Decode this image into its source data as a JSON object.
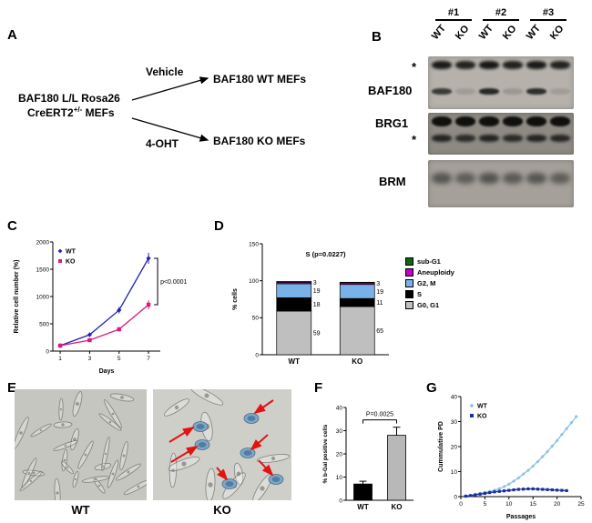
{
  "panels": {
    "a": {
      "label": "A",
      "source_line1": "BAF180 L/L Rosa26",
      "source_line2_pre": "CreERT2",
      "source_line2_sup": "+/-",
      "source_line2_post": " MEFs",
      "arm1_label": "Vehicle",
      "arm2_label": "4-OHT",
      "arm1_result": "BAF180 WT MEFs",
      "arm2_result": "BAF180 KO MEFs"
    },
    "b": {
      "label": "B",
      "groups": [
        "#1",
        "#2",
        "#3"
      ],
      "lanes": [
        "WT",
        "KO",
        "WT",
        "KO",
        "WT",
        "KO"
      ],
      "row_labels": {
        "nonspecific_top": "*",
        "baf180": "BAF180",
        "brg1": "BRG1",
        "nonspecific_mid": "*",
        "brm": "BRM"
      },
      "blots": [
        {
          "name": "BAF180 blot",
          "bg": "#b6b2ab",
          "bands": [
            {
              "y": 0.16,
              "h": 9,
              "blur": 1.5,
              "intensities": [
                0.9,
                0.85,
                0.92,
                0.86,
                0.9,
                0.85
              ]
            },
            {
              "y": 0.66,
              "h": 7,
              "blur": 1,
              "intensities": [
                0.7,
                0.12,
                0.82,
                0.15,
                0.78,
                0.12
              ]
            }
          ]
        },
        {
          "name": "BRG1 blot",
          "bg": "#8e8a83",
          "bands": [
            {
              "y": 0.2,
              "h": 11,
              "blur": 1,
              "intensities": [
                0.95,
                0.95,
                0.95,
                0.95,
                0.95,
                0.95
              ]
            },
            {
              "y": 0.6,
              "h": 8,
              "blur": 1.5,
              "intensities": [
                0.8,
                0.75,
                0.8,
                0.75,
                0.8,
                0.78
              ]
            }
          ]
        },
        {
          "name": "BRM blot",
          "bg": "#a5a19a",
          "bands": [
            {
              "y": 0.38,
              "h": 12,
              "blur": 3,
              "intensities": [
                0.5,
                0.45,
                0.52,
                0.48,
                0.5,
                0.45
              ]
            }
          ]
        }
      ]
    },
    "c": {
      "label": "C"
    },
    "d": {
      "label": "D"
    },
    "e": {
      "label": "E",
      "wt_caption": "WT",
      "ko_caption": "KO"
    },
    "f": {
      "label": "F"
    },
    "g": {
      "label": "G"
    }
  },
  "chart_data": [
    {
      "id": "c-growth",
      "type": "line",
      "xlabel": "Days",
      "ylabel": "Relative cell number (%)",
      "x": [
        1,
        3,
        5,
        7
      ],
      "xticks": [
        1,
        3,
        5,
        7
      ],
      "xlim": [
        0.5,
        7.8
      ],
      "yticks": [
        0,
        500,
        1000,
        1500,
        2000
      ],
      "ylim": [
        0,
        2000
      ],
      "annotation": "p<0.0001",
      "legend_position": "top-left",
      "series": [
        {
          "name": "WT",
          "color": "#2222bb",
          "marker": "diamond",
          "values": [
            100,
            300,
            750,
            1700
          ],
          "err": [
            20,
            40,
            60,
            100
          ]
        },
        {
          "name": "KO",
          "color": "#d81b7c",
          "marker": "square",
          "values": [
            100,
            200,
            400,
            850
          ],
          "err": [
            15,
            30,
            40,
            80
          ]
        }
      ]
    },
    {
      "id": "d-cellcycle",
      "type": "stacked-bar",
      "title": "S (p=0.0227)",
      "ylabel": "% cells",
      "yticks": [
        0,
        50,
        100,
        150
      ],
      "ylim": [
        0,
        150
      ],
      "categories": [
        "WT",
        "KO"
      ],
      "segments": [
        {
          "name": "G0, G1",
          "color": "#bfbfbf",
          "values": [
            59,
            65
          ]
        },
        {
          "name": "S",
          "color": "#000000",
          "values": [
            18,
            11
          ]
        },
        {
          "name": "G2, M",
          "color": "#79b2e8",
          "values": [
            19,
            19
          ]
        },
        {
          "name": "Aneuploidy",
          "color": "#c400c4",
          "values": [
            2,
            2
          ]
        },
        {
          "name": "sub-G1",
          "color": "#156317",
          "values": [
            1,
            1
          ]
        }
      ],
      "segment_labels": [
        [
          59,
          18,
          19,
          3
        ],
        [
          65,
          11,
          19,
          3
        ]
      ],
      "legend_order": [
        "sub-G1",
        "Aneuploidy",
        "G2, M",
        "S",
        "G0, G1"
      ],
      "legend_position": "right"
    },
    {
      "id": "f-bgal",
      "type": "bar",
      "ylabel": "% b-Gal positive cells",
      "yticks": [
        0,
        10,
        20,
        30,
        40
      ],
      "ylim": [
        0,
        40
      ],
      "categories": [
        "WT",
        "KO"
      ],
      "values": [
        7,
        28
      ],
      "errors": [
        1.2,
        3.5
      ],
      "colors": [
        "#000000",
        "#b8b8b8"
      ],
      "annotation": "P=0.0025"
    },
    {
      "id": "g-pd",
      "type": "line",
      "xlabel": "Passages",
      "ylabel": "Cummulative PD",
      "xticks": [
        0,
        5,
        10,
        15,
        20,
        25
      ],
      "xlim": [
        0,
        25
      ],
      "yticks": [
        0,
        10,
        20,
        30,
        40
      ],
      "ylim": [
        0,
        40
      ],
      "legend_position": "top-left",
      "series": [
        {
          "name": "WT",
          "color": "#8fc0e8",
          "marker": "diamond",
          "x": [
            1,
            2,
            3,
            4,
            5,
            6,
            7,
            8,
            9,
            10,
            11,
            12,
            13,
            14,
            15,
            16,
            17,
            18,
            19,
            20,
            21,
            22,
            23,
            24
          ],
          "values": [
            0.2,
            0.5,
            0.9,
            1.3,
            1.7,
            2.1,
            2.6,
            3.2,
            4.0,
            5.0,
            6.2,
            7.5,
            9.0,
            10.5,
            12.2,
            14.0,
            16.0,
            18.0,
            20.2,
            22.4,
            24.8,
            27.2,
            29.6,
            32.0
          ]
        },
        {
          "name": "KO",
          "color": "#1b2d9e",
          "marker": "square",
          "x": [
            1,
            2,
            3,
            4,
            5,
            6,
            7,
            8,
            9,
            10,
            11,
            12,
            13,
            14,
            15,
            16,
            17,
            18,
            19,
            20,
            21,
            22
          ],
          "values": [
            0.2,
            0.4,
            0.7,
            1.0,
            1.3,
            1.6,
            1.9,
            2.1,
            2.3,
            2.5,
            2.7,
            2.9,
            3.0,
            3.1,
            3.1,
            3.0,
            2.9,
            2.8,
            2.7,
            2.6,
            2.5,
            2.4
          ]
        }
      ]
    }
  ]
}
